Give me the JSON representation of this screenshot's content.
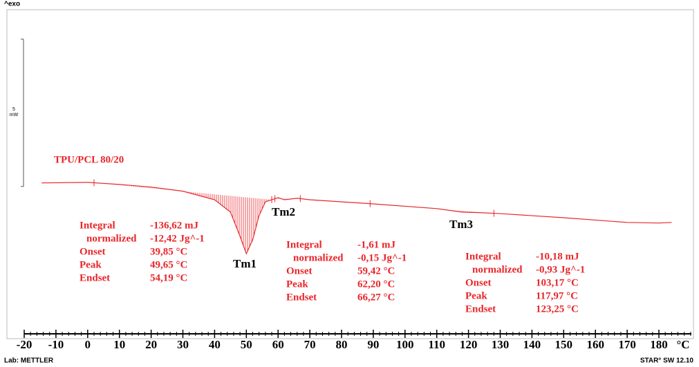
{
  "chart_data": {
    "type": "line",
    "top_label": "^exo",
    "x": [
      -14.5,
      0,
      10,
      20,
      30,
      40,
      45,
      48,
      50,
      52,
      54,
      56,
      60,
      62,
      66,
      70,
      90,
      110,
      118,
      124,
      130,
      150,
      170,
      180,
      184
    ],
    "series": [
      {
        "name": "TPU/PCL 80/20",
        "color": "#e8262a",
        "values": [
          0.12,
          0.14,
          0.07,
          -0.02,
          -0.16,
          -0.45,
          -0.87,
          -1.69,
          -2.28,
          -1.81,
          -0.99,
          -0.52,
          -0.38,
          -0.45,
          -0.4,
          -0.45,
          -0.59,
          -0.75,
          -0.87,
          -0.89,
          -0.92,
          -1.06,
          -1.22,
          -1.24,
          -1.22
        ]
      }
    ],
    "xlim": [
      -20,
      180
    ],
    "xticks": [
      -20,
      -10,
      0,
      10,
      20,
      30,
      40,
      50,
      60,
      70,
      80,
      90,
      100,
      110,
      120,
      130,
      140,
      150,
      160,
      170,
      180
    ],
    "x_unit": "°C",
    "ylim": [
      -5,
      6
    ],
    "scale_bar": {
      "value": 5,
      "unit": "mW"
    },
    "peaks": [
      {
        "label": "Tm1",
        "limits": [
          2,
          58
        ],
        "results": [
          [
            "Integral",
            "-136,62 mJ"
          ],
          [
            "normalized",
            "-12,42 Jg^-1"
          ],
          [
            "Onset",
            "39,85 °C"
          ],
          [
            "Peak",
            "49,65 °C"
          ],
          [
            "Endset",
            "54,19 °C"
          ]
        ]
      },
      {
        "label": "Tm2",
        "limits": [
          59,
          67
        ],
        "results": [
          [
            "Integral",
            "-1,61 mJ"
          ],
          [
            "normalized",
            "-0,15 Jg^-1"
          ],
          [
            "Onset",
            "59,42 °C"
          ],
          [
            "Peak",
            "62,20 °C"
          ],
          [
            "Endset",
            "66,27 °C"
          ]
        ]
      },
      {
        "label": "Tm3",
        "limits": [
          89,
          128
        ],
        "results": [
          [
            "Integral",
            "-10,18 mJ"
          ],
          [
            "normalized",
            "-0,93 Jg^-1"
          ],
          [
            "Onset",
            "103,17 °C"
          ],
          [
            "Peak",
            "117,97 °C"
          ],
          [
            "Endset",
            "123,25 °C"
          ]
        ]
      }
    ],
    "footer_left": "Lab: METTLER",
    "footer_right": "STAR° SW 12.10"
  }
}
